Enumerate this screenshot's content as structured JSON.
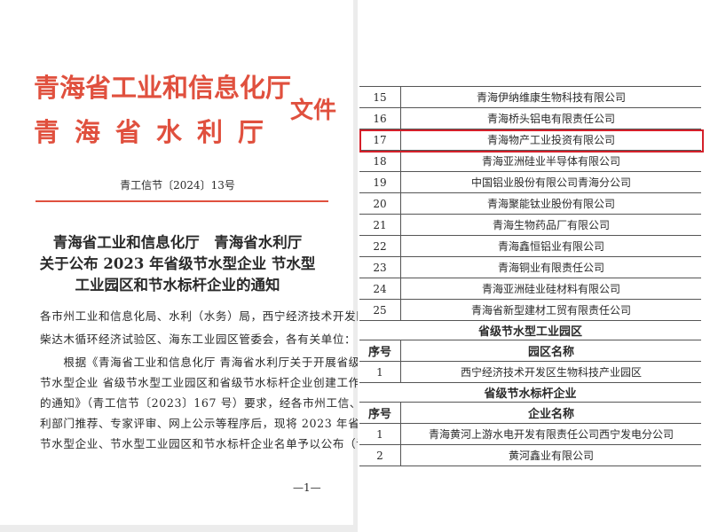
{
  "left_page": {
    "header_line1": "青海省工业和信息化厅",
    "header_line2": "青海省水利厅",
    "header_suffix": "文件",
    "doc_number": "青工信节〔2024〕13号",
    "title_lines": [
      "青海省工业和信息化厅　青海省水利厅",
      "关于公布 2023 年省级节水型企业 节水型",
      "工业园区和节水标杆企业的通知"
    ],
    "body_lines": [
      "各市州工业和信息化局、水利（水务）局，西宁经济技术开发区、",
      "柴达木循环经济试验区、海东工业园区管委会，各有关单位：",
      "　　根据《青海省工业和信息化厅 青海省水利厅关于开展省级",
      "节水型企业 省级节水型工业园区和省级节水标杆企业创建工作",
      "的通知》（青工信节〔2023〕167 号）要求，经各市州工信、水",
      "利部门推荐、专家评审、网上公示等程序后，现将 2023 年省级",
      "节水型企业、节水型工业园区和节水标杆企业名单予以公布（详"
    ],
    "page_number": "—1—"
  },
  "right_page": {
    "enterprises": [
      {
        "no": "15",
        "name": "青海伊纳维康生物科技有限公司"
      },
      {
        "no": "16",
        "name": "青海桥头铝电有限责任公司"
      },
      {
        "no": "17",
        "name": "青海物产工业投资有限公司",
        "highlighted": true
      },
      {
        "no": "18",
        "name": "青海亚洲硅业半导体有限公司"
      },
      {
        "no": "19",
        "name": "中国铝业股份有限公司青海分公司"
      },
      {
        "no": "20",
        "name": "青海聚能钛业股份有限公司"
      },
      {
        "no": "21",
        "name": "青海生物药品厂有限公司"
      },
      {
        "no": "22",
        "name": "青海鑫恒铝业有限公司"
      },
      {
        "no": "23",
        "name": "青海铜业有限责任公司"
      },
      {
        "no": "24",
        "name": "青海亚洲硅业硅材料有限公司"
      },
      {
        "no": "25",
        "name": "青海省新型建材工贸有限责任公司"
      }
    ],
    "parks_section": {
      "title": "省级节水型工业园区",
      "col_no": "序号",
      "col_name": "园区名称",
      "rows": [
        {
          "no": "1",
          "name": "西宁经济技术开发区生物科技产业园区"
        }
      ]
    },
    "benchmark_section": {
      "title": "省级节水标杆企业",
      "col_no": "序号",
      "col_name": "企业名称",
      "rows": [
        {
          "no": "1",
          "name": "青海黄河上游水电开发有限责任公司西宁发电分公司"
        },
        {
          "no": "2",
          "name": "黄河鑫业有限公司"
        }
      ]
    },
    "highlight_color": "#d4202a"
  },
  "colors": {
    "header_red": "#e0503e"
  }
}
